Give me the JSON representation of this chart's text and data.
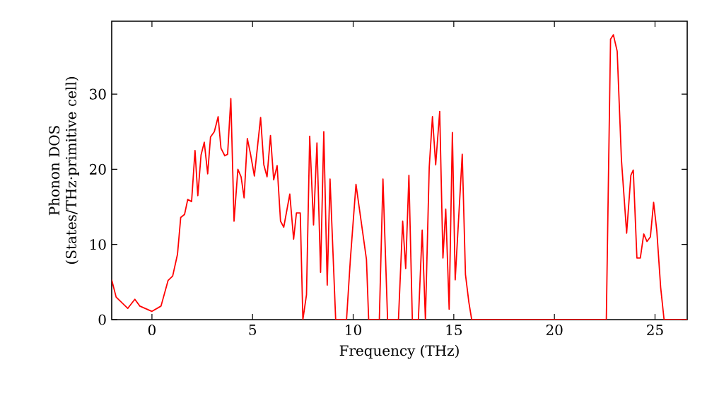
{
  "chart_data": {
    "type": "line",
    "xlabel": "Frequency (THz)",
    "ylabel": "Phonon DOS (States/THz·primitive cell)",
    "xlim": [
      -2,
      26.6
    ],
    "ylim": [
      0,
      39.7
    ],
    "xticks": [
      0,
      5,
      10,
      15,
      20,
      25
    ],
    "yticks": [
      0,
      10,
      20,
      30
    ],
    "marker": "none",
    "line_style": "solid",
    "series": [
      {
        "color": "#ff0000",
        "x": [
          -2,
          -1.78,
          -1.2,
          -0.85,
          -0.6,
          0,
          0.45,
          0.8,
          1.03,
          1.27,
          1.43,
          1.62,
          1.78,
          1.97,
          2.14,
          2.28,
          2.44,
          2.6,
          2.77,
          2.91,
          3.1,
          3.29,
          3.43,
          3.62,
          3.76,
          3.92,
          4.08,
          4.27,
          4.43,
          4.58,
          4.74,
          4.9,
          5.09,
          5.4,
          5.56,
          5.72,
          5.89,
          6.05,
          6.22,
          6.39,
          6.55,
          6.85,
          7.04,
          7.18,
          7.37,
          7.5,
          7.68,
          7.84,
          8.03,
          8.2,
          8.38,
          8.54,
          8.71,
          8.85,
          9.13,
          9.67,
          9.86,
          10.14,
          10.66,
          10.77,
          11.3,
          11.48,
          11.71,
          12.25,
          12.46,
          12.61,
          12.77,
          12.94,
          13.24,
          13.43,
          13.59,
          13.78,
          13.94,
          14.1,
          14.3,
          14.46,
          14.6,
          14.77,
          14.93,
          15.07,
          15.42,
          15.58,
          15.75,
          15.89,
          22.58,
          22.79,
          22.93,
          23.12,
          23.33,
          23.59,
          23.8,
          23.92,
          24.1,
          24.27,
          24.44,
          24.6,
          24.77,
          24.93,
          25.09,
          25.28,
          25.45,
          26.6
        ],
        "values": [
          5.3,
          3.0,
          1.5,
          2.7,
          1.8,
          1.1,
          1.8,
          5.2,
          5.8,
          8.7,
          13.6,
          14,
          16,
          15.7,
          22.5,
          16.5,
          21.9,
          23.6,
          19.4,
          24.3,
          25,
          27,
          22.8,
          21.8,
          22,
          29.4,
          13.1,
          20,
          19,
          16.2,
          24.1,
          22,
          19.1,
          26.9,
          20.6,
          19,
          24.5,
          18.6,
          20.5,
          13.1,
          12.3,
          16.7,
          10.7,
          14.2,
          14.2,
          0,
          3.3,
          24.4,
          12.6,
          23.5,
          6.3,
          25,
          4.6,
          18.7,
          0,
          0,
          8,
          18,
          8,
          0,
          0,
          18.7,
          0,
          0,
          13.1,
          6.8,
          19.2,
          0,
          0,
          11.9,
          0,
          20.3,
          27,
          20.6,
          27.7,
          8.2,
          14.7,
          1.4,
          24.9,
          5.3,
          22,
          6,
          2.3,
          0,
          0,
          37.3,
          37.9,
          35.7,
          21.3,
          11.5,
          19.2,
          19.9,
          8.2,
          8.2,
          11.4,
          10.4,
          11,
          15.6,
          11.8,
          4.3,
          0,
          0
        ]
      }
    ]
  }
}
